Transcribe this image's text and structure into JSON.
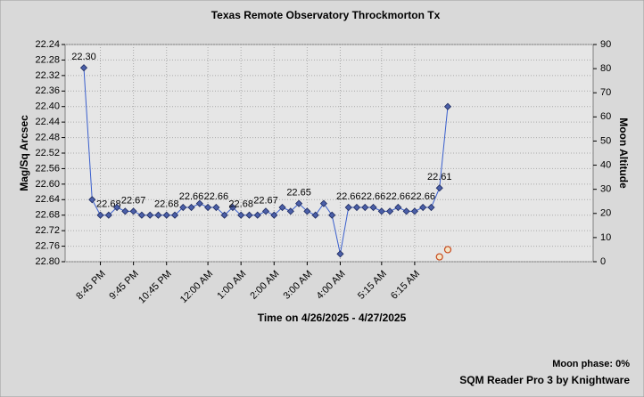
{
  "chart_data": {
    "type": "line",
    "title": "Texas Remote Observatory   Throckmorton Tx",
    "xlabel": "Time on 4/26/2025 - 4/27/2025",
    "ylabel": "Mag/Sq Arcsec",
    "y2label": "Moon Altitude",
    "footer": [
      "Moon phase: 0%",
      "SQM Reader Pro 3 by Knightware"
    ],
    "categories": [
      null,
      null,
      "8:45 PM",
      null,
      null,
      null,
      "9:45 PM",
      null,
      null,
      null,
      "10:45 PM",
      null,
      null,
      null,
      null,
      "12:00 AM",
      null,
      null,
      null,
      "1:00 AM",
      null,
      null,
      null,
      "2:00 AM",
      null,
      null,
      null,
      "3:00 AM",
      null,
      null,
      null,
      "4:00 AM",
      null,
      null,
      null,
      null,
      "5:15 AM",
      null,
      null,
      null,
      "6:15 AM",
      null,
      null,
      null,
      null
    ],
    "series": [
      {
        "name": "Mag/Sq Arcsec",
        "color": "#3a5fcd",
        "values": [
          22.3,
          22.64,
          22.68,
          22.68,
          22.66,
          22.67,
          22.67,
          22.68,
          22.68,
          22.68,
          22.68,
          22.68,
          22.66,
          22.66,
          22.65,
          22.66,
          22.66,
          22.68,
          22.66,
          22.68,
          22.68,
          22.68,
          22.67,
          22.68,
          22.66,
          22.67,
          22.65,
          22.67,
          22.68,
          22.65,
          22.68,
          22.78,
          22.66,
          22.66,
          22.66,
          22.66,
          22.67,
          22.67,
          22.66,
          22.67,
          22.67,
          22.66,
          22.66,
          22.61,
          22.4
        ],
        "value_labels": [
          "22.30",
          null,
          null,
          "22.68",
          null,
          null,
          "22.67",
          null,
          null,
          null,
          "22.68",
          null,
          null,
          "22.66",
          null,
          null,
          "22.66",
          null,
          null,
          "22.68",
          null,
          null,
          "22.67",
          null,
          null,
          null,
          "22.65",
          null,
          null,
          null,
          null,
          null,
          "22.66",
          null,
          null,
          "22.66",
          null,
          null,
          "22.66",
          null,
          null,
          "22.66",
          null,
          "22.61",
          null
        ]
      },
      {
        "name": "Moon Altitude",
        "color": "#c84a1e",
        "axis": "y2",
        "values": [
          null,
          null,
          null,
          null,
          null,
          null,
          null,
          null,
          null,
          null,
          null,
          null,
          null,
          null,
          null,
          null,
          null,
          null,
          null,
          null,
          null,
          null,
          null,
          null,
          null,
          null,
          null,
          null,
          null,
          null,
          null,
          null,
          null,
          null,
          null,
          null,
          null,
          null,
          null,
          null,
          null,
          null,
          null,
          2,
          5
        ]
      }
    ],
    "ylim": [
      22.24,
      22.8
    ],
    "y_inverted": true,
    "yticks": [
      22.24,
      22.28,
      22.32,
      22.36,
      {
        "value": 22.4,
        "label": "22.40"
      },
      22.44,
      22.48,
      22.52,
      22.56,
      {
        "value": 22.6,
        "label": "22.60"
      },
      22.64,
      22.68,
      22.72,
      22.76,
      {
        "value": 22.8,
        "label": "22.80"
      }
    ],
    "y2lim": [
      0,
      90
    ],
    "y2ticks": [
      0,
      10,
      20,
      30,
      40,
      50,
      60,
      70,
      80,
      90
    ],
    "grid": true
  }
}
